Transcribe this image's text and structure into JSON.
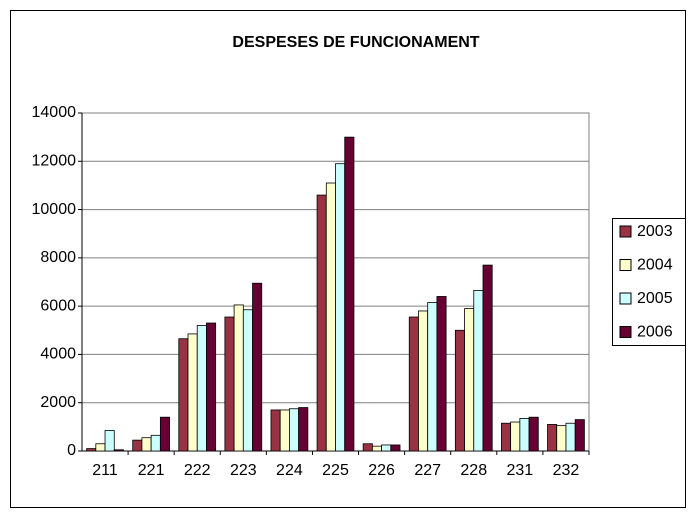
{
  "chart_data": {
    "type": "bar",
    "title": "DESPESES DE FUNCIONAMENT",
    "categories": [
      "211",
      "221",
      "222",
      "223",
      "224",
      "225",
      "226",
      "227",
      "228",
      "231",
      "232"
    ],
    "series": [
      {
        "name": "2003",
        "color": "#993344",
        "values": [
          100,
          450,
          4650,
          5550,
          1700,
          10600,
          300,
          5550,
          5000,
          1150,
          1100
        ]
      },
      {
        "name": "2004",
        "color": "#ffffcc",
        "values": [
          300,
          550,
          4850,
          6050,
          1700,
          11100,
          200,
          5800,
          5900,
          1200,
          1050
        ]
      },
      {
        "name": "2005",
        "color": "#ccffff",
        "values": [
          850,
          650,
          5200,
          5850,
          1750,
          11900,
          250,
          6150,
          6650,
          1350,
          1150
        ]
      },
      {
        "name": "2006",
        "color": "#660033",
        "values": [
          50,
          1400,
          5300,
          6950,
          1800,
          13000,
          250,
          6400,
          7700,
          1400,
          1300
        ]
      }
    ],
    "ylim": [
      0,
      14000
    ],
    "yticks": [
      0,
      2000,
      4000,
      6000,
      8000,
      10000,
      12000,
      14000
    ],
    "grid": true,
    "legend": "right"
  }
}
